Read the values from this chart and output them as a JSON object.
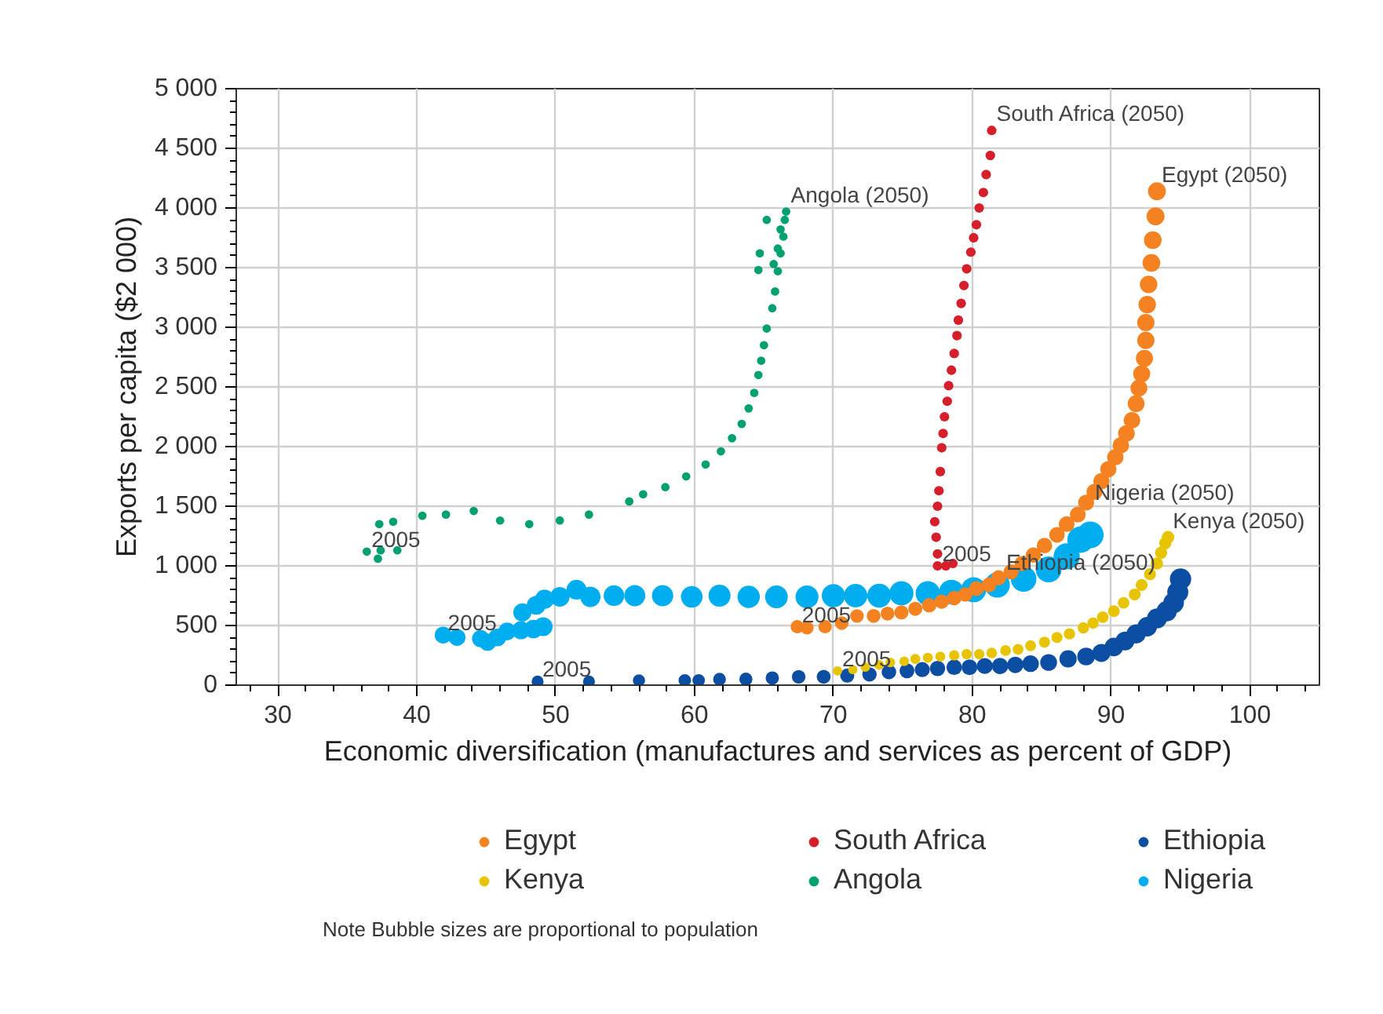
{
  "chart_data": {
    "type": "bubble",
    "xlabel": "Economic diversification (manufactures and services as percent of GDP)",
    "ylabel": "Exports per capita ($2 000)",
    "xlim": [
      27,
      105
    ],
    "ylim": [
      0,
      5000
    ],
    "xticks": [
      30,
      40,
      50,
      60,
      70,
      80,
      90,
      100
    ],
    "yticks": [
      0,
      500,
      {
        "value": 1000,
        "label": "1 000"
      },
      {
        "value": 1500,
        "label": "1 500"
      },
      {
        "value": 2000,
        "label": "2 000"
      },
      {
        "value": 2500,
        "label": "2 500"
      },
      {
        "value": 3000,
        "label": "3 000"
      },
      {
        "value": 3500,
        "label": "3 500"
      },
      {
        "value": 4000,
        "label": "4 000"
      },
      {
        "value": 4500,
        "label": "4 500"
      },
      {
        "value": 5000,
        "label": "5 000"
      }
    ],
    "grid": true,
    "legend": "bottom",
    "series": [
      {
        "name": "Egypt",
        "color": "#f58220",
        "x": [
          67.4,
          68.1,
          69.4,
          70.6,
          71.7,
          72.9,
          73.9,
          74.9,
          75.9,
          76.9,
          77.8,
          78.7,
          79.5,
          80.3,
          81.2,
          81.9,
          82.8,
          83.6,
          84.4,
          85.2,
          86.1,
          86.8,
          87.6,
          88.2,
          88.8,
          89.3,
          89.8,
          90.3,
          90.7,
          91.1,
          91.5,
          91.8,
          92.0,
          92.2,
          92.4,
          92.5,
          92.5,
          92.6,
          92.7,
          92.9,
          93.0,
          93.2,
          93.3
        ],
        "values": [
          490,
          480,
          490,
          520,
          580,
          580,
          600,
          610,
          640,
          670,
          700,
          730,
          760,
          810,
          840,
          900,
          950,
          1020,
          1090,
          1170,
          1260,
          1350,
          1430,
          1530,
          1620,
          1710,
          1810,
          1910,
          2010,
          2110,
          2220,
          2360,
          2490,
          2610,
          2740,
          2890,
          3040,
          3190,
          3360,
          3540,
          3730,
          3930,
          4140
        ],
        "sizes": [
          0.25,
          0.25,
          0.25,
          0.26,
          0.26,
          0.27,
          0.27,
          0.28,
          0.28,
          0.29,
          0.29,
          0.3,
          0.3,
          0.31,
          0.31,
          0.32,
          0.32,
          0.33,
          0.33,
          0.34,
          0.34,
          0.35,
          0.35,
          0.36,
          0.36,
          0.37,
          0.37,
          0.38,
          0.38,
          0.39,
          0.39,
          0.4,
          0.4,
          0.41,
          0.41,
          0.42,
          0.42,
          0.43,
          0.43,
          0.44,
          0.44,
          0.45,
          0.45
        ]
      },
      {
        "name": "Kenya",
        "color": "#e8c300",
        "x": [
          70.3,
          71.4,
          72.3,
          73.3,
          74.1,
          75.1,
          75.9,
          76.8,
          77.7,
          78.7,
          79.6,
          80.5,
          81.4,
          82.4,
          83.3,
          84.2,
          85.2,
          86.1,
          87.0,
          88.0,
          88.7,
          89.4,
          90.2,
          90.9,
          91.7,
          92.2,
          92.8,
          93.3,
          93.6,
          93.9,
          94.1
        ],
        "values": [
          120,
          130,
          150,
          170,
          190,
          200,
          220,
          230,
          240,
          250,
          260,
          260,
          270,
          290,
          300,
          330,
          360,
          400,
          430,
          480,
          520,
          570,
          620,
          690,
          760,
          840,
          930,
          1020,
          1110,
          1190,
          1240
        ],
        "sizes": [
          0.12,
          0.12,
          0.12,
          0.13,
          0.13,
          0.13,
          0.14,
          0.14,
          0.14,
          0.15,
          0.15,
          0.15,
          0.16,
          0.16,
          0.16,
          0.17,
          0.17,
          0.17,
          0.18,
          0.18,
          0.18,
          0.19,
          0.19,
          0.19,
          0.2,
          0.2,
          0.2,
          0.21,
          0.21,
          0.21,
          0.22
        ]
      },
      {
        "name": "South Africa",
        "color": "#d51f2a",
        "x": [
          77.5,
          78.1,
          78.6,
          77.5,
          77.4,
          77.3,
          77.5,
          77.6,
          77.7,
          77.8,
          77.9,
          78.0,
          78.2,
          78.3,
          78.5,
          78.7,
          78.9,
          79.0,
          79.2,
          79.4,
          79.6,
          79.9,
          80.1,
          80.3,
          80.5,
          80.8,
          81.0,
          81.3,
          81.4
        ],
        "values": [
          1000,
          1000,
          1020,
          1100,
          1240,
          1370,
          1500,
          1630,
          1790,
          1990,
          2110,
          2250,
          2380,
          2510,
          2640,
          2780,
          2930,
          3060,
          3200,
          3350,
          3490,
          3630,
          3750,
          3860,
          4000,
          4130,
          4280,
          4440,
          4650
        ],
        "sizes": [
          0.13,
          0.13,
          0.13,
          0.13,
          0.13,
          0.13,
          0.13,
          0.13,
          0.13,
          0.13,
          0.13,
          0.13,
          0.13,
          0.13,
          0.13,
          0.13,
          0.13,
          0.13,
          0.13,
          0.13,
          0.13,
          0.13,
          0.13,
          0.13,
          0.13,
          0.13,
          0.13,
          0.13,
          0.13
        ]
      },
      {
        "name": "Angola",
        "color": "#00a070",
        "x": [
          36.4,
          37.2,
          37.4,
          38.6,
          37.3,
          38.3,
          40.4,
          42.1,
          44.1,
          46.0,
          48.1,
          50.3,
          52.4,
          55.3,
          56.3,
          57.9,
          59.4,
          60.8,
          61.9,
          62.7,
          63.4,
          63.9,
          64.3,
          64.6,
          64.8,
          65.0,
          65.2,
          65.6,
          65.8,
          66.0,
          65.7,
          64.6,
          64.7,
          66.2,
          66.0,
          66.4,
          66.2,
          66.5,
          66.6,
          65.2
        ],
        "values": [
          1120,
          1060,
          1130,
          1130,
          1350,
          1370,
          1420,
          1430,
          1460,
          1380,
          1350,
          1380,
          1430,
          1540,
          1600,
          1660,
          1750,
          1850,
          1960,
          2070,
          2190,
          2320,
          2450,
          2600,
          2720,
          2850,
          2990,
          3160,
          3300,
          3470,
          3530,
          3480,
          3620,
          3620,
          3660,
          3760,
          3820,
          3900,
          3970,
          3900
        ],
        "sizes": [
          0.1,
          0.1,
          0.1,
          0.1,
          0.1,
          0.1,
          0.1,
          0.1,
          0.1,
          0.1,
          0.1,
          0.1,
          0.1,
          0.1,
          0.1,
          0.1,
          0.1,
          0.1,
          0.1,
          0.1,
          0.1,
          0.1,
          0.1,
          0.1,
          0.1,
          0.1,
          0.1,
          0.1,
          0.1,
          0.1,
          0.1,
          0.1,
          0.1,
          0.1,
          0.1,
          0.1,
          0.1,
          0.1,
          0.1,
          0.1
        ]
      },
      {
        "name": "Ethiopia",
        "color": "#0b4ea2",
        "x": [
          48.7,
          52.4,
          56.0,
          59.3,
          60.3,
          61.8,
          63.7,
          65.6,
          67.5,
          69.3,
          71.0,
          72.6,
          74.0,
          75.3,
          76.4,
          77.5,
          78.7,
          79.8,
          80.9,
          82.0,
          83.1,
          84.2,
          85.5,
          86.9,
          88.2,
          89.3,
          90.2,
          91.0,
          91.8,
          92.6,
          93.3,
          94.0,
          94.5,
          94.8,
          95.0
        ],
        "values": [
          30,
          30,
          40,
          40,
          40,
          50,
          50,
          60,
          70,
          70,
          80,
          90,
          110,
          120,
          130,
          140,
          150,
          150,
          160,
          160,
          170,
          180,
          190,
          220,
          240,
          270,
          320,
          370,
          430,
          490,
          560,
          620,
          690,
          780,
          890
        ],
        "sizes": [
          0.2,
          0.2,
          0.21,
          0.22,
          0.22,
          0.23,
          0.24,
          0.25,
          0.26,
          0.27,
          0.28,
          0.29,
          0.3,
          0.31,
          0.32,
          0.33,
          0.34,
          0.35,
          0.36,
          0.37,
          0.38,
          0.39,
          0.4,
          0.42,
          0.44,
          0.46,
          0.48,
          0.5,
          0.52,
          0.54,
          0.56,
          0.58,
          0.6,
          0.62,
          0.64
        ]
      },
      {
        "name": "Nigeria",
        "color": "#00aeef",
        "x": [
          41.9,
          42.9,
          44.6,
          45.1,
          45.8,
          46.5,
          47.5,
          47.6,
          48.4,
          49.1,
          48.6,
          49.2,
          50.3,
          51.5,
          52.5,
          54.2,
          55.7,
          57.7,
          59.8,
          61.8,
          63.9,
          65.9,
          68.1,
          70.0,
          71.6,
          73.3,
          74.9,
          76.8,
          78.5,
          80.1,
          81.8,
          83.7,
          85.5,
          86.8,
          87.8,
          88.5
        ],
        "values": [
          420,
          400,
          390,
          360,
          400,
          450,
          460,
          610,
          470,
          490,
          670,
          720,
          740,
          800,
          740,
          750,
          750,
          750,
          740,
          750,
          740,
          740,
          740,
          750,
          750,
          750,
          770,
          770,
          780,
          800,
          840,
          890,
          970,
          1080,
          1220,
          1260
        ],
        "sizes": [
          0.4,
          0.4,
          0.42,
          0.42,
          0.44,
          0.44,
          0.46,
          0.46,
          0.48,
          0.5,
          0.5,
          0.52,
          0.54,
          0.56,
          0.58,
          0.6,
          0.62,
          0.64,
          0.66,
          0.68,
          0.7,
          0.72,
          0.74,
          0.76,
          0.78,
          0.8,
          0.82,
          0.84,
          0.86,
          0.88,
          0.9,
          0.92,
          0.94,
          0.96,
          0.98,
          1
        ]
      }
    ],
    "annotations": [
      {
        "text": "Angola (2050)",
        "x": 66.6,
        "y": 3970
      },
      {
        "text": "South Africa (2050)",
        "x": 81.4,
        "y": 4650
      },
      {
        "text": "Egypt (2050)",
        "x": 93.3,
        "y": 4140
      },
      {
        "text": "Kenya (2050)",
        "x": 94.1,
        "y": 1240
      },
      {
        "text": "Nigeria (2050)",
        "x": 88.5,
        "y": 1260
      },
      {
        "text": "Ethiopia (2050)",
        "x": 95.0,
        "y": 890
      },
      {
        "text": "2005",
        "x": 36.4,
        "y": 1120
      },
      {
        "text": "2005",
        "x": 41.9,
        "y": 420
      },
      {
        "text": "2005",
        "x": 48.7,
        "y": 30
      },
      {
        "text": "2005",
        "x": 67.4,
        "y": 490
      },
      {
        "text": "2005",
        "x": 77.5,
        "y": 1000
      },
      {
        "text": "2005",
        "x": 70.3,
        "y": 120
      },
      "Note Bubble sizes are proportional to population"
    ]
  }
}
